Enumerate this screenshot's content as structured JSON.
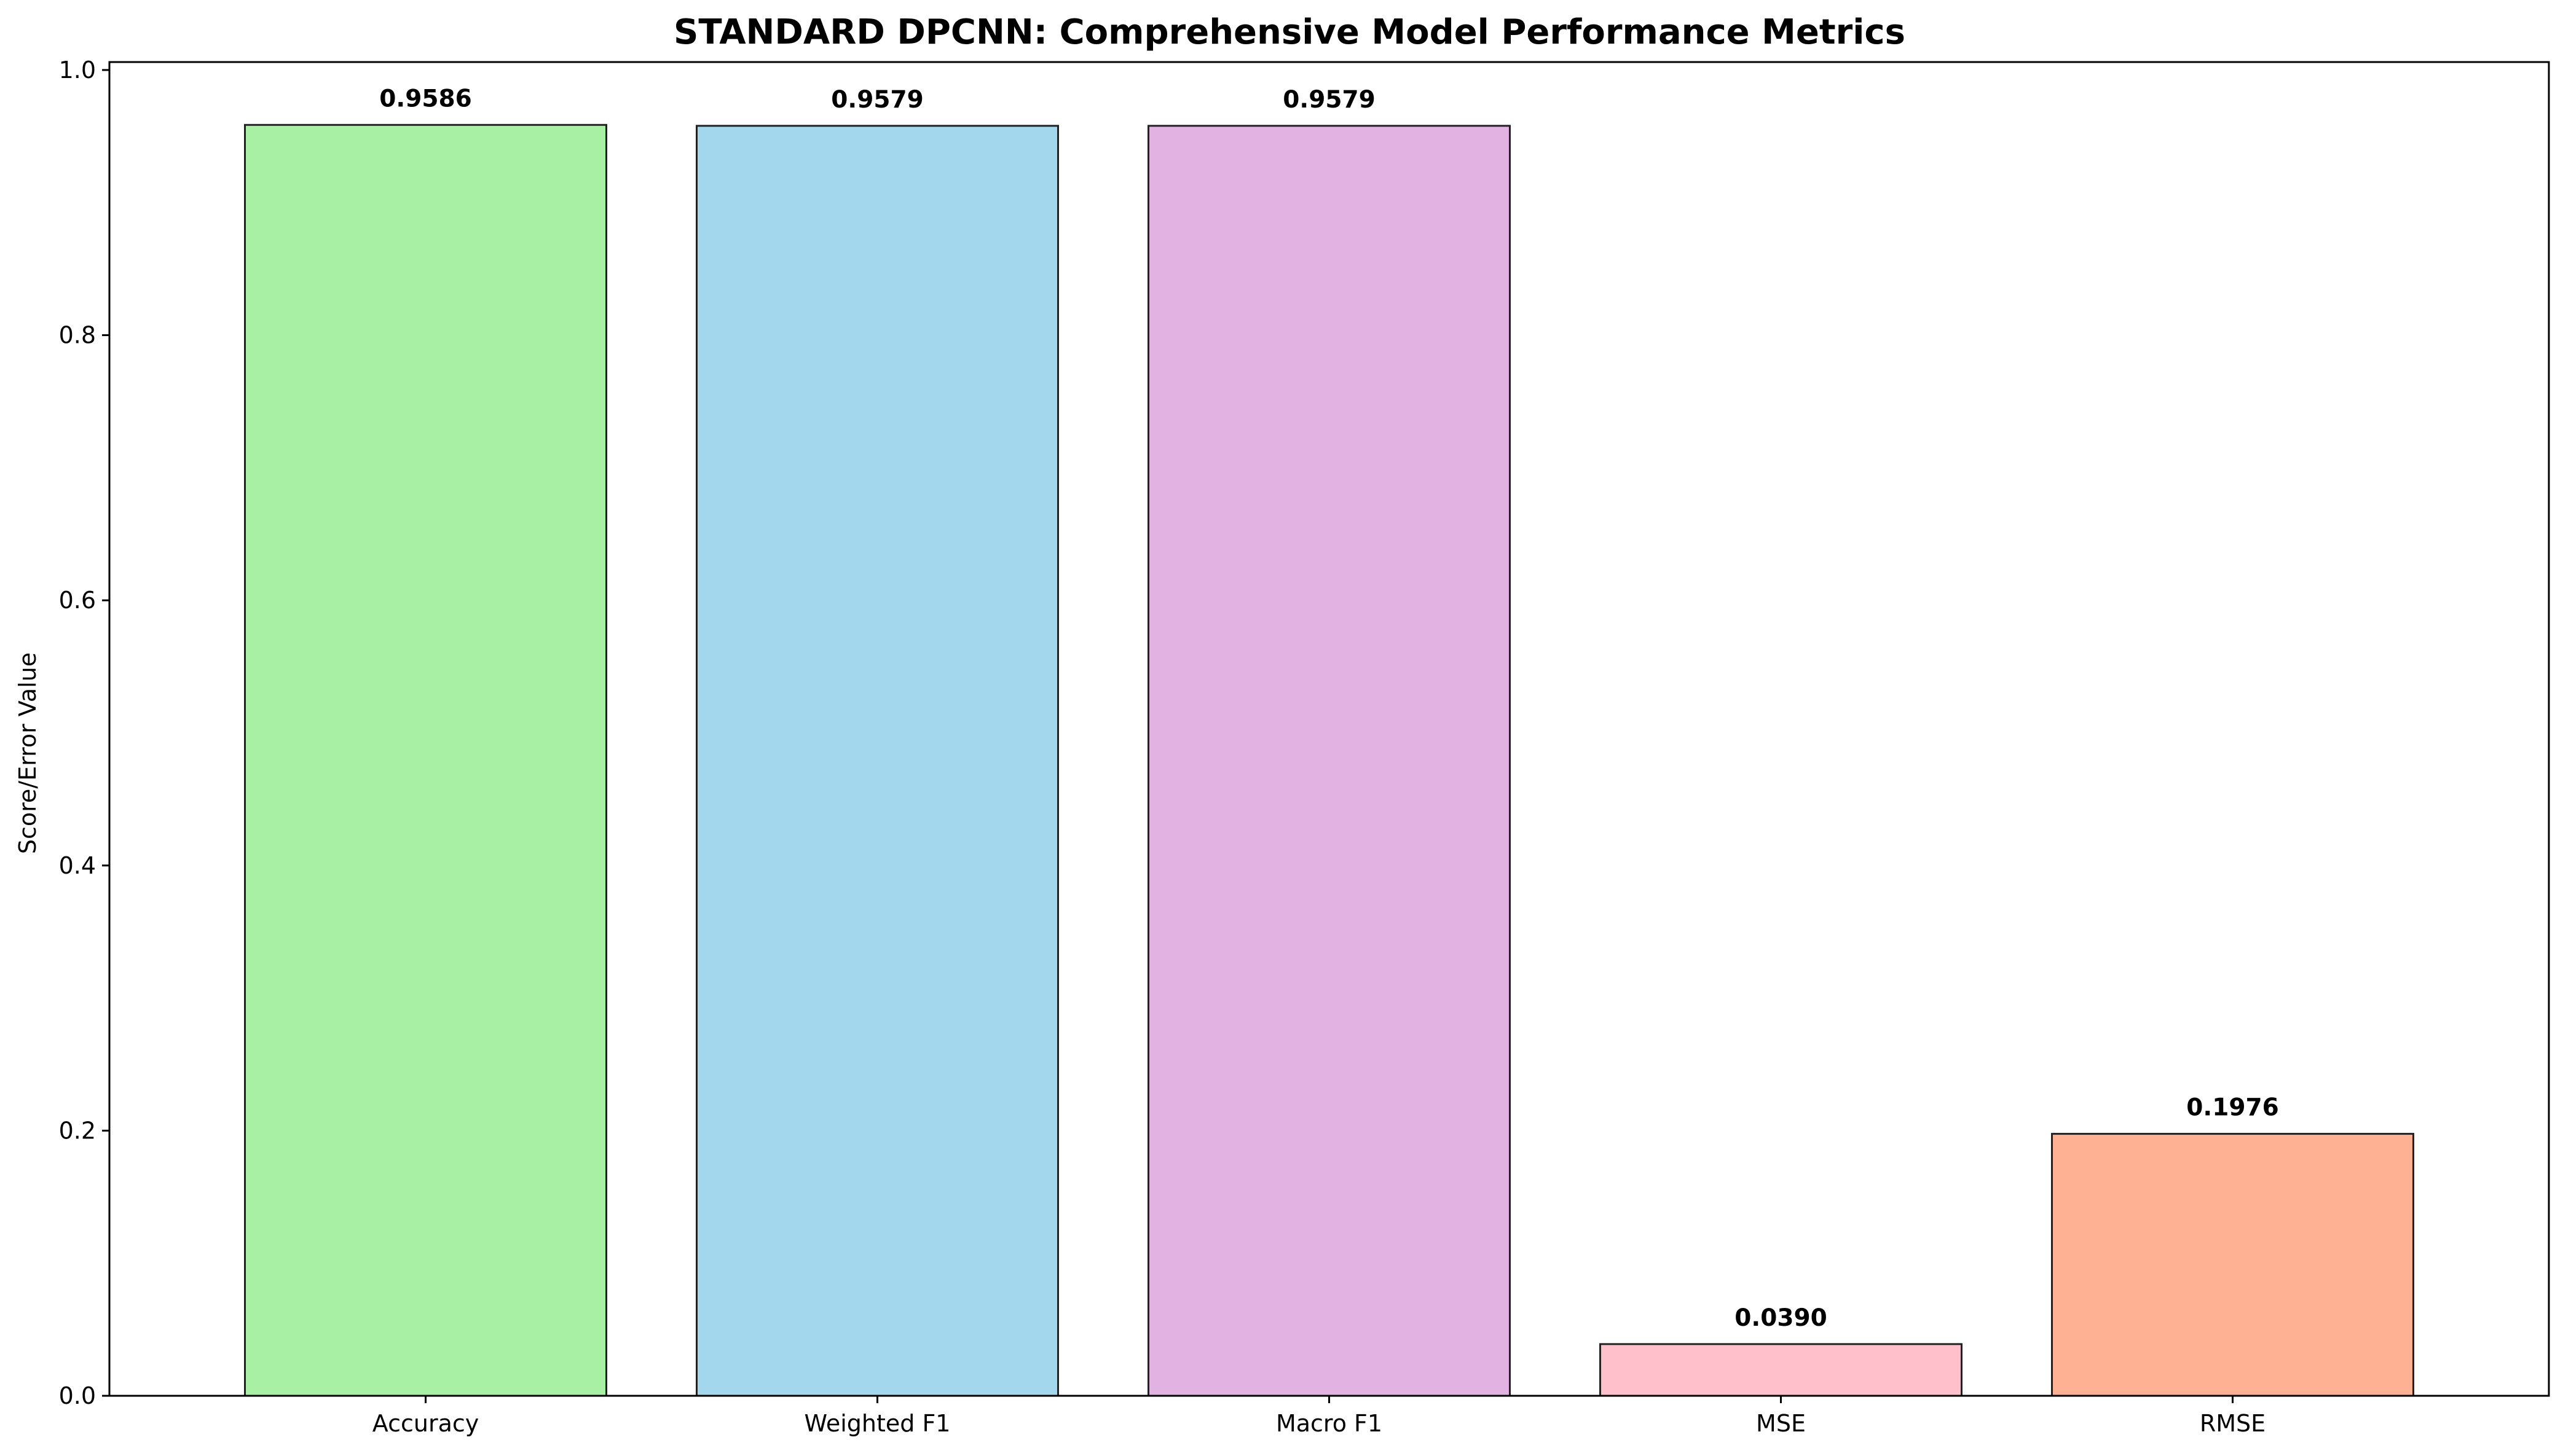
{
  "chart_data": {
    "type": "bar",
    "title": "STANDARD DPCNN: Comprehensive Model Performance Metrics",
    "xlabel": "",
    "ylabel": "Score/Error Value",
    "categories": [
      "Accuracy",
      "Weighted F1",
      "Macro F1",
      "MSE",
      "RMSE"
    ],
    "values": [
      0.9586,
      0.9579,
      0.9579,
      0.039,
      0.1976
    ],
    "value_labels": [
      "0.9586",
      "0.9579",
      "0.9579",
      "0.0390",
      "0.1976"
    ],
    "colors": [
      "#a8f0a4",
      "#a2d7ee",
      "#e2b3e2",
      "#ffc0cb",
      "#ffb293"
    ],
    "edge_color": "#222222",
    "ylim": [
      0,
      1.006
    ],
    "yticks": [
      0.0,
      0.2,
      0.4,
      0.6,
      0.8,
      1.0
    ],
    "ytick_labels": [
      "0.0",
      "0.2",
      "0.4",
      "0.6",
      "0.8",
      "1.0"
    ],
    "grid": false,
    "legend": "none"
  }
}
